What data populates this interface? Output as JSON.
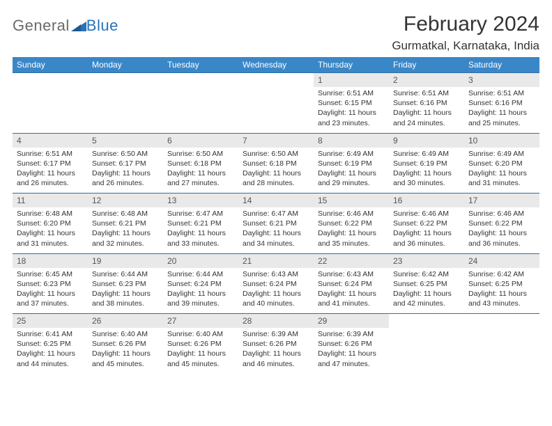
{
  "logo": {
    "general": "General",
    "blue": "Blue"
  },
  "title": "February 2024",
  "location": "Gurmatkal, Karnataka, India",
  "colors": {
    "header_bg": "#3a87c8",
    "header_fg": "#ffffff",
    "daynum_bg": "#e9e9e9",
    "row_divider": "#2f6ea6",
    "logo_gray": "#6a6a6a",
    "logo_blue": "#2873b8"
  },
  "weekdays": [
    "Sunday",
    "Monday",
    "Tuesday",
    "Wednesday",
    "Thursday",
    "Friday",
    "Saturday"
  ],
  "weeks": [
    [
      null,
      null,
      null,
      null,
      {
        "d": "1",
        "sr": "6:51 AM",
        "ss": "6:15 PM",
        "dl": "11 hours and 23 minutes."
      },
      {
        "d": "2",
        "sr": "6:51 AM",
        "ss": "6:16 PM",
        "dl": "11 hours and 24 minutes."
      },
      {
        "d": "3",
        "sr": "6:51 AM",
        "ss": "6:16 PM",
        "dl": "11 hours and 25 minutes."
      }
    ],
    [
      {
        "d": "4",
        "sr": "6:51 AM",
        "ss": "6:17 PM",
        "dl": "11 hours and 26 minutes."
      },
      {
        "d": "5",
        "sr": "6:50 AM",
        "ss": "6:17 PM",
        "dl": "11 hours and 26 minutes."
      },
      {
        "d": "6",
        "sr": "6:50 AM",
        "ss": "6:18 PM",
        "dl": "11 hours and 27 minutes."
      },
      {
        "d": "7",
        "sr": "6:50 AM",
        "ss": "6:18 PM",
        "dl": "11 hours and 28 minutes."
      },
      {
        "d": "8",
        "sr": "6:49 AM",
        "ss": "6:19 PM",
        "dl": "11 hours and 29 minutes."
      },
      {
        "d": "9",
        "sr": "6:49 AM",
        "ss": "6:19 PM",
        "dl": "11 hours and 30 minutes."
      },
      {
        "d": "10",
        "sr": "6:49 AM",
        "ss": "6:20 PM",
        "dl": "11 hours and 31 minutes."
      }
    ],
    [
      {
        "d": "11",
        "sr": "6:48 AM",
        "ss": "6:20 PM",
        "dl": "11 hours and 31 minutes."
      },
      {
        "d": "12",
        "sr": "6:48 AM",
        "ss": "6:21 PM",
        "dl": "11 hours and 32 minutes."
      },
      {
        "d": "13",
        "sr": "6:47 AM",
        "ss": "6:21 PM",
        "dl": "11 hours and 33 minutes."
      },
      {
        "d": "14",
        "sr": "6:47 AM",
        "ss": "6:21 PM",
        "dl": "11 hours and 34 minutes."
      },
      {
        "d": "15",
        "sr": "6:46 AM",
        "ss": "6:22 PM",
        "dl": "11 hours and 35 minutes."
      },
      {
        "d": "16",
        "sr": "6:46 AM",
        "ss": "6:22 PM",
        "dl": "11 hours and 36 minutes."
      },
      {
        "d": "17",
        "sr": "6:46 AM",
        "ss": "6:22 PM",
        "dl": "11 hours and 36 minutes."
      }
    ],
    [
      {
        "d": "18",
        "sr": "6:45 AM",
        "ss": "6:23 PM",
        "dl": "11 hours and 37 minutes."
      },
      {
        "d": "19",
        "sr": "6:44 AM",
        "ss": "6:23 PM",
        "dl": "11 hours and 38 minutes."
      },
      {
        "d": "20",
        "sr": "6:44 AM",
        "ss": "6:24 PM",
        "dl": "11 hours and 39 minutes."
      },
      {
        "d": "21",
        "sr": "6:43 AM",
        "ss": "6:24 PM",
        "dl": "11 hours and 40 minutes."
      },
      {
        "d": "22",
        "sr": "6:43 AM",
        "ss": "6:24 PM",
        "dl": "11 hours and 41 minutes."
      },
      {
        "d": "23",
        "sr": "6:42 AM",
        "ss": "6:25 PM",
        "dl": "11 hours and 42 minutes."
      },
      {
        "d": "24",
        "sr": "6:42 AM",
        "ss": "6:25 PM",
        "dl": "11 hours and 43 minutes."
      }
    ],
    [
      {
        "d": "25",
        "sr": "6:41 AM",
        "ss": "6:25 PM",
        "dl": "11 hours and 44 minutes."
      },
      {
        "d": "26",
        "sr": "6:40 AM",
        "ss": "6:26 PM",
        "dl": "11 hours and 45 minutes."
      },
      {
        "d": "27",
        "sr": "6:40 AM",
        "ss": "6:26 PM",
        "dl": "11 hours and 45 minutes."
      },
      {
        "d": "28",
        "sr": "6:39 AM",
        "ss": "6:26 PM",
        "dl": "11 hours and 46 minutes."
      },
      {
        "d": "29",
        "sr": "6:39 AM",
        "ss": "6:26 PM",
        "dl": "11 hours and 47 minutes."
      },
      null,
      null
    ]
  ],
  "labels": {
    "sunrise": "Sunrise: ",
    "sunset": "Sunset: ",
    "daylight": "Daylight: "
  }
}
